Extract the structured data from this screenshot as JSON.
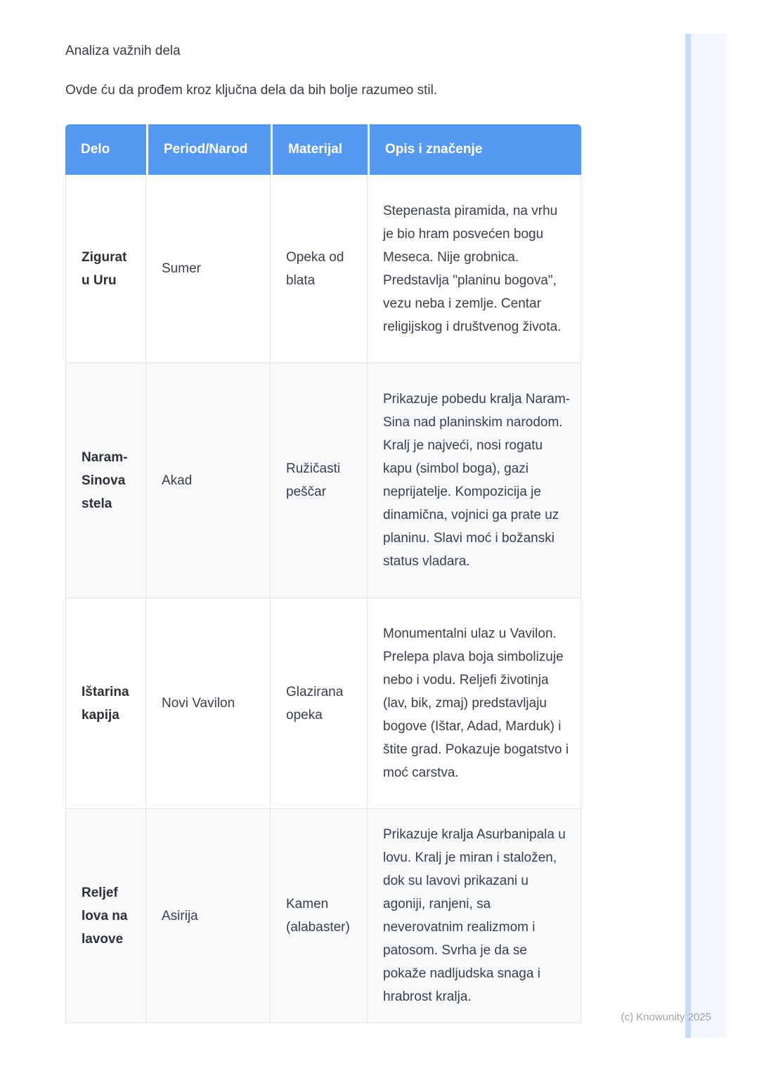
{
  "page": {
    "heading": "Analiza važnih dela",
    "intro": "Ovde ću da prođem kroz ključna dela da bih bolje razumeo stil.",
    "watermark": "(c) Knowunity 2025"
  },
  "colors": {
    "header_bg": "#5699f2",
    "header_text": "#ffffff",
    "row_bg": "#ffffff",
    "row_alt_bg": "#f8f9fa",
    "cell_border": "#e3e5e8",
    "body_text": "#3a4048",
    "bold_text": "#2d3136",
    "watermark_text": "#9da3aa",
    "edge_panel": "#f3f7fd",
    "edge_line": "#c9dcf7"
  },
  "table": {
    "columns": [
      "Delo",
      "Period/Narod",
      "Materijal",
      "Opis i značenje"
    ],
    "rows": [
      {
        "delo": "Zigurat u Uru",
        "period": "Sumer",
        "materijal": "Opeka od blata",
        "opis": "Stepenasta piramida, na vrhu je bio hram posvećen bogu Meseca. Nije grobnica. Predstavlja \"planinu bogova\", vezu neba i zemlje. Centar religijskog i društvenog života."
      },
      {
        "delo": "Naram-Sinova stela",
        "period": "Akad",
        "materijal": "Ružičasti peščar",
        "opis": "Prikazuje pobedu kralja Naram-Sina nad planinskim narodom. Kralj je najveći, nosi rogatu kapu (simbol boga), gazi neprijatelje. Kompozicija je dinamična, vojnici ga prate uz planinu. Slavi moć i božanski status vladara."
      },
      {
        "delo": "Ištarina kapija",
        "period": "Novi Vavilon",
        "materijal": "Glazirana opeka",
        "opis": "Monumentalni ulaz u Vavilon. Prelepa plava boja simbolizuje nebo i vodu. Reljefi životinja (lav, bik, zmaj) predstavljaju bogove (Ištar, Adad, Marduk) i štite grad. Pokazuje bogatstvo i moć carstva."
      },
      {
        "delo": "Reljef lova na lavove",
        "period": "Asirija",
        "materijal": "Kamen (alabaster)",
        "opis": "Prikazuje kralja Asurbanipala u lovu. Kralj je miran i staložen, dok su lavovi prikazani u agoniji, ranjeni, sa neverovatnim realizmom i patosom. Svrha je da se pokaže nadljudska snaga i hrabrost kralja."
      }
    ]
  }
}
